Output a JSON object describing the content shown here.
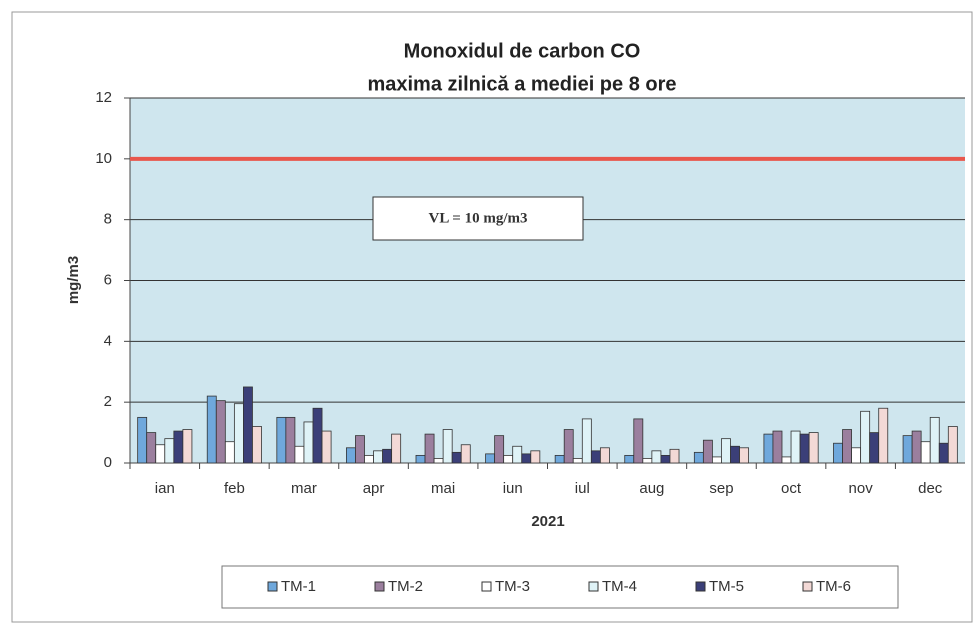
{
  "chart_data": {
    "type": "bar",
    "title": [
      "Monoxidul de carbon CO",
      "maxima zilnică a mediei pe 8 ore"
    ],
    "x_label": "2021",
    "y_label": "mg/m3",
    "categories": [
      "ian",
      "feb",
      "mar",
      "apr",
      "mai",
      "iun",
      "iul",
      "aug",
      "sep",
      "oct",
      "nov",
      "dec"
    ],
    "series": [
      {
        "name": "TM-1",
        "color": "#6fa8dc",
        "values": [
          1.5,
          2.2,
          1.5,
          0.5,
          0.25,
          0.3,
          0.25,
          0.25,
          0.35,
          0.95,
          0.65,
          0.9
        ]
      },
      {
        "name": "TM-2",
        "color": "#9b7f9e",
        "values": [
          1.0,
          2.05,
          1.5,
          0.9,
          0.95,
          0.9,
          1.1,
          1.45,
          0.75,
          1.05,
          1.1,
          1.05
        ]
      },
      {
        "name": "TM-3",
        "color": "#ffffff",
        "values": [
          0.6,
          0.7,
          0.55,
          0.25,
          0.15,
          0.25,
          0.15,
          0.15,
          0.2,
          0.2,
          0.5,
          0.7
        ]
      },
      {
        "name": "TM-4",
        "color": "#dff3f7",
        "values": [
          0.8,
          1.95,
          1.35,
          0.4,
          1.1,
          0.55,
          1.45,
          0.4,
          0.8,
          1.05,
          1.7,
          1.5
        ]
      },
      {
        "name": "TM-5",
        "color": "#3b3f78",
        "values": [
          1.05,
          2.5,
          1.8,
          0.45,
          0.35,
          0.3,
          0.4,
          0.25,
          0.55,
          0.95,
          1.0,
          0.65
        ]
      },
      {
        "name": "TM-6",
        "color": "#f3d9d6",
        "values": [
          1.1,
          1.2,
          1.05,
          0.95,
          0.6,
          0.4,
          0.5,
          0.45,
          0.5,
          1.0,
          1.8,
          1.2
        ]
      }
    ],
    "ylim": [
      0,
      12
    ],
    "yticks": [
      0,
      2,
      4,
      6,
      8,
      10,
      12
    ],
    "grid": true,
    "reference_line": {
      "value": 10,
      "label": "VL = 10 mg/m3",
      "color": "#e8574c"
    },
    "legend": "bottom"
  }
}
